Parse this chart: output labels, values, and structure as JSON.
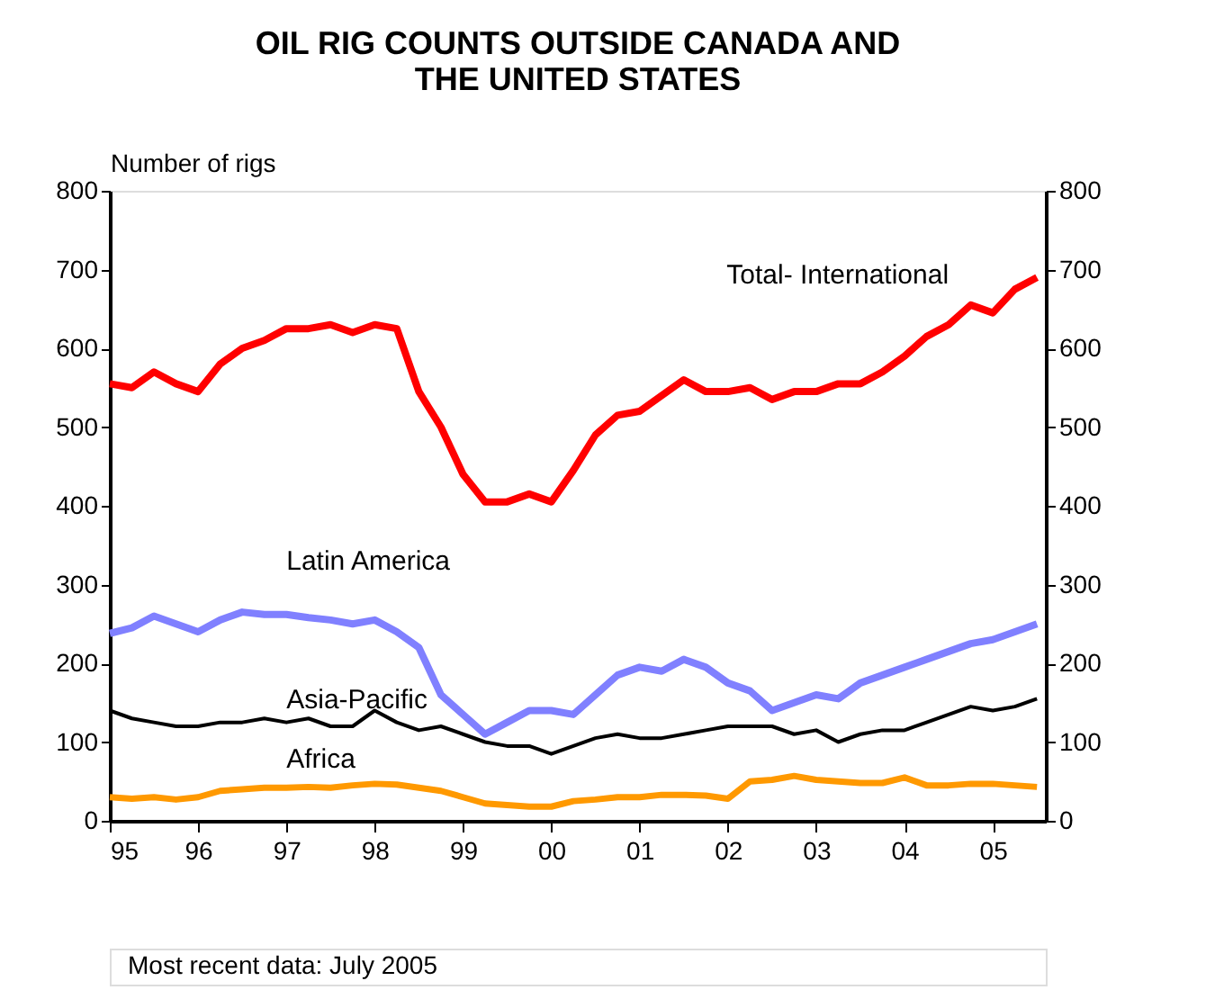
{
  "chart_data": {
    "type": "line",
    "title": [
      "OIL RIG COUNTS OUTSIDE CANADA AND",
      "THE UNITED STATES"
    ],
    "ylabel": "Number of rigs",
    "x": [
      1995.0,
      1995.25,
      1995.5,
      1995.75,
      1996.0,
      1996.25,
      1996.5,
      1996.75,
      1997.0,
      1997.25,
      1997.5,
      1997.75,
      1998.0,
      1998.25,
      1998.5,
      1998.75,
      1999.0,
      1999.25,
      1999.5,
      1999.75,
      2000.0,
      2000.25,
      2000.5,
      2000.75,
      2001.0,
      2001.25,
      2001.5,
      2001.75,
      2002.0,
      2002.25,
      2002.5,
      2002.75,
      2003.0,
      2003.25,
      2003.5,
      2003.75,
      2004.0,
      2004.25,
      2004.5,
      2004.75,
      2005.0,
      2005.25,
      2005.5
    ],
    "series": [
      {
        "name": "Total- International",
        "color": "#ff0000",
        "values": [
          555,
          550,
          570,
          555,
          545,
          580,
          600,
          610,
          625,
          625,
          630,
          620,
          630,
          625,
          545,
          500,
          440,
          405,
          405,
          415,
          405,
          445,
          490,
          515,
          520,
          540,
          560,
          545,
          545,
          550,
          535,
          545,
          545,
          555,
          555,
          570,
          590,
          615,
          630,
          655,
          645,
          675,
          690
        ]
      },
      {
        "name": "Latin America",
        "color": "#8080ff",
        "values": [
          238,
          245,
          260,
          250,
          240,
          255,
          265,
          262,
          262,
          258,
          255,
          250,
          255,
          240,
          220,
          160,
          135,
          110,
          125,
          140,
          140,
          135,
          160,
          185,
          195,
          190,
          205,
          195,
          175,
          165,
          140,
          150,
          160,
          155,
          175,
          185,
          195,
          205,
          215,
          225,
          230,
          240,
          250
        ]
      },
      {
        "name": "Asia-Pacific",
        "color": "#000000",
        "values": [
          140,
          130,
          125,
          120,
          120,
          125,
          125,
          130,
          125,
          130,
          120,
          120,
          140,
          125,
          115,
          120,
          110,
          100,
          95,
          95,
          85,
          95,
          105,
          110,
          105,
          105,
          110,
          115,
          120,
          120,
          120,
          110,
          115,
          100,
          110,
          115,
          115,
          125,
          135,
          145,
          140,
          145,
          155
        ]
      },
      {
        "name": "Africa",
        "color": "#ff9900",
        "values": [
          30,
          28,
          30,
          27,
          30,
          38,
          40,
          42,
          42,
          43,
          42,
          45,
          47,
          46,
          42,
          38,
          30,
          22,
          20,
          18,
          18,
          25,
          27,
          30,
          30,
          33,
          33,
          32,
          28,
          50,
          52,
          57,
          52,
          50,
          48,
          48,
          55,
          45,
          45,
          47,
          47,
          45,
          43
        ]
      }
    ],
    "xlim": [
      1995,
      2005.6
    ],
    "xticks": [
      {
        "value": 1995,
        "label": "95"
      },
      {
        "value": 1996,
        "label": "96"
      },
      {
        "value": 1997,
        "label": "97"
      },
      {
        "value": 1998,
        "label": "98"
      },
      {
        "value": 1999,
        "label": "99"
      },
      {
        "value": 2000,
        "label": "00"
      },
      {
        "value": 2001,
        "label": "01"
      },
      {
        "value": 2002,
        "label": "02"
      },
      {
        "value": 2003,
        "label": "03"
      },
      {
        "value": 2004,
        "label": "04"
      },
      {
        "value": 2005,
        "label": "05"
      }
    ],
    "ylim": [
      0,
      800
    ],
    "yticks": [
      0,
      100,
      200,
      300,
      400,
      500,
      600,
      700,
      800
    ],
    "y2lim": [
      0,
      800
    ],
    "y2ticks": [
      0,
      100,
      200,
      300,
      400,
      500,
      600,
      700,
      800
    ],
    "grid": false,
    "annotations": [
      "Most recent data: July 2005"
    ]
  }
}
